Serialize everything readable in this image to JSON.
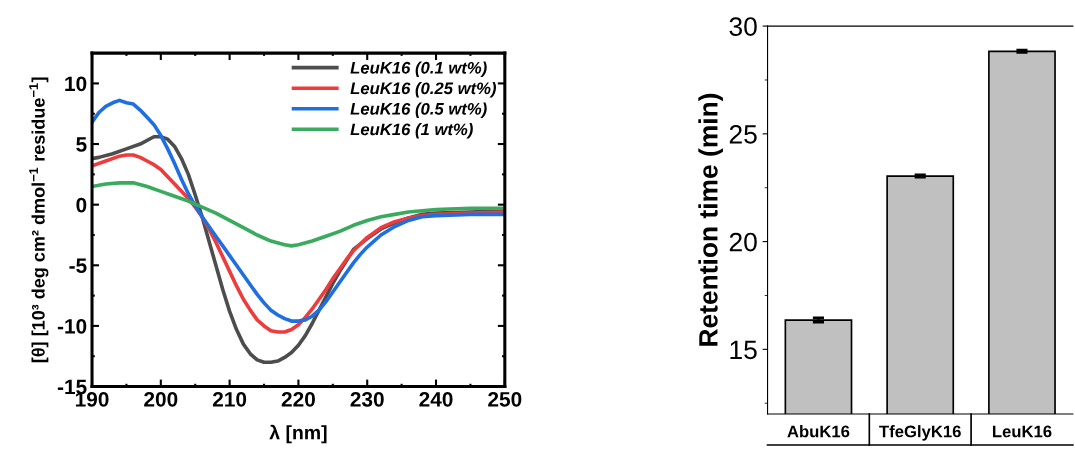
{
  "chart_data": [
    {
      "type": "line",
      "xlabel": "λ [nm]",
      "ylabel": "[θ] [10³ deg cm² dmol$^{−1}$ residue$^{−1}$]",
      "xlim": [
        190,
        250
      ],
      "ylim": [
        -15,
        12.5
      ],
      "xticks": [
        190,
        200,
        210,
        220,
        230,
        240,
        250
      ],
      "yticks": [
        -15,
        -10,
        -5,
        0,
        5,
        10
      ],
      "legend": "top right",
      "series": [
        {
          "name": "LeuK16 (0.1 wt%)",
          "color": "#4d4d4d",
          "x": [
            190,
            191,
            193,
            195,
            197,
            199,
            200,
            201,
            202,
            203,
            204,
            205,
            206,
            207,
            208,
            209,
            210,
            211,
            212,
            213,
            214,
            215,
            216,
            217,
            218,
            219,
            220,
            221,
            222,
            223,
            224,
            225,
            226,
            227,
            228,
            230,
            232,
            234,
            236,
            238,
            240,
            245,
            250
          ],
          "values": [
            3.8,
            3.9,
            4.2,
            4.6,
            5.0,
            5.6,
            5.6,
            5.4,
            4.8,
            3.8,
            2.5,
            0.8,
            -1.0,
            -3.0,
            -5.0,
            -7.0,
            -8.8,
            -10.3,
            -11.5,
            -12.3,
            -12.8,
            -13.0,
            -13.0,
            -12.9,
            -12.6,
            -12.2,
            -11.6,
            -10.8,
            -9.8,
            -8.7,
            -7.6,
            -6.5,
            -5.5,
            -4.6,
            -3.7,
            -2.8,
            -2.0,
            -1.5,
            -1.1,
            -0.8,
            -0.7,
            -0.6,
            -0.5
          ]
        },
        {
          "name": "LeuK16 (0.25 wt%)",
          "color": "#ee3b3b",
          "x": [
            190,
            192,
            194,
            195,
            196,
            197,
            198,
            199,
            200,
            201,
            202,
            203,
            204,
            205,
            206,
            207,
            208,
            209,
            210,
            211,
            212,
            213,
            214,
            215,
            216,
            217,
            218,
            219,
            220,
            221,
            222,
            223,
            224,
            225,
            226,
            227,
            228,
            230,
            232,
            234,
            236,
            238,
            240,
            245,
            250
          ],
          "values": [
            3.2,
            3.6,
            4.0,
            4.1,
            4.1,
            3.9,
            3.6,
            3.3,
            2.9,
            2.3,
            1.7,
            1.1,
            0.5,
            -0.2,
            -1.0,
            -2.0,
            -3.1,
            -4.3,
            -5.5,
            -6.7,
            -7.8,
            -8.7,
            -9.5,
            -10.0,
            -10.4,
            -10.5,
            -10.5,
            -10.3,
            -9.9,
            -9.3,
            -8.6,
            -7.8,
            -7.0,
            -6.1,
            -5.3,
            -4.5,
            -3.8,
            -2.7,
            -1.9,
            -1.4,
            -1.1,
            -0.9,
            -0.8,
            -0.7,
            -0.6
          ]
        },
        {
          "name": "LeuK16 (0.5 wt%)",
          "color": "#1f6fe0",
          "x": [
            190,
            191,
            192,
            193,
            194,
            195,
            196,
            197,
            198,
            199,
            200,
            201,
            202,
            203,
            204,
            205,
            206,
            207,
            208,
            209,
            210,
            211,
            212,
            213,
            214,
            215,
            216,
            217,
            218,
            219,
            220,
            221,
            222,
            223,
            224,
            225,
            226,
            227,
            228,
            229,
            230,
            232,
            234,
            236,
            238,
            240,
            245,
            250
          ],
          "values": [
            6.8,
            7.6,
            8.1,
            8.4,
            8.6,
            8.4,
            8.3,
            7.8,
            7.2,
            6.6,
            5.7,
            4.6,
            3.4,
            2.1,
            0.9,
            -0.1,
            -1.0,
            -1.8,
            -2.6,
            -3.4,
            -4.2,
            -5.0,
            -5.8,
            -6.6,
            -7.4,
            -8.1,
            -8.7,
            -9.1,
            -9.4,
            -9.6,
            -9.6,
            -9.5,
            -9.2,
            -8.7,
            -8.0,
            -7.2,
            -6.4,
            -5.6,
            -4.8,
            -4.1,
            -3.5,
            -2.5,
            -1.8,
            -1.3,
            -1.0,
            -0.9,
            -0.8,
            -0.8
          ]
        },
        {
          "name": "LeuK16 (1 wt%)",
          "color": "#3aaa5e",
          "x": [
            190,
            192,
            194,
            196,
            198,
            200,
            202,
            204,
            206,
            208,
            210,
            212,
            214,
            216,
            218,
            219,
            220,
            222,
            224,
            226,
            228,
            230,
            232,
            234,
            236,
            238,
            240,
            245,
            250
          ],
          "values": [
            1.5,
            1.7,
            1.8,
            1.8,
            1.5,
            1.1,
            0.7,
            0.3,
            -0.2,
            -0.7,
            -1.3,
            -1.9,
            -2.5,
            -3.0,
            -3.3,
            -3.4,
            -3.3,
            -3.0,
            -2.6,
            -2.2,
            -1.7,
            -1.3,
            -1.0,
            -0.8,
            -0.6,
            -0.5,
            -0.4,
            -0.3,
            -0.3
          ]
        }
      ]
    },
    {
      "type": "bar",
      "ylabel": "Retention time (min)",
      "categories": [
        "AbuK16",
        "TfeGlyK16",
        "LeuK16"
      ],
      "values": [
        16.36,
        23.04,
        28.83
      ],
      "errors": [
        0.1,
        0.05,
        0.05
      ],
      "color": "#c0c0c0",
      "ylim": [
        12,
        30
      ],
      "yticks": [
        15,
        20,
        25,
        30
      ]
    }
  ]
}
